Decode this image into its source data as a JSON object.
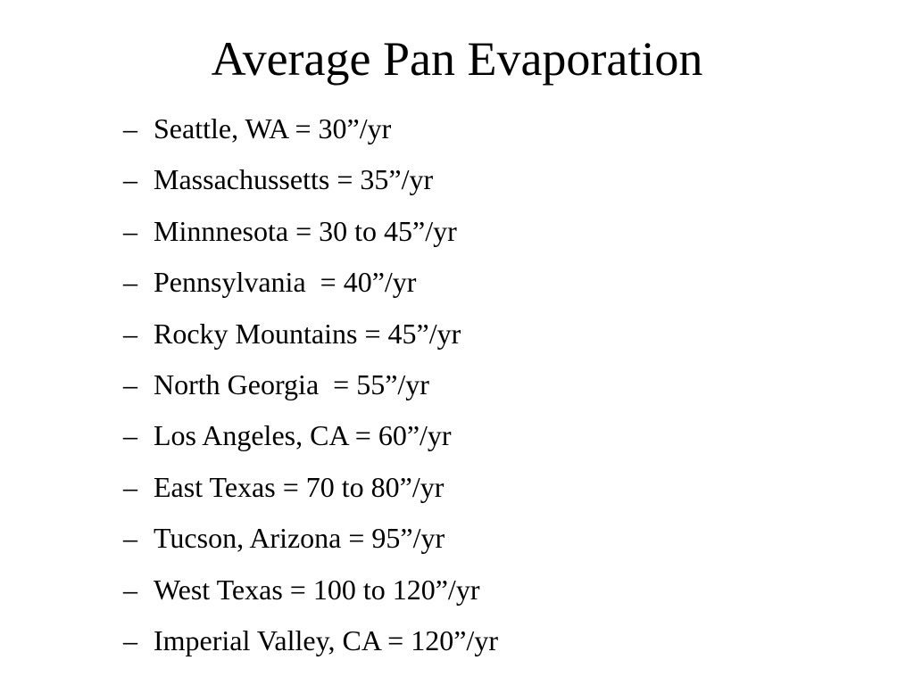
{
  "title": "Average Pan Evaporation",
  "bullet": "–",
  "items": [
    "Seattle, WA = 30”/yr",
    "Massachussetts = 35”/yr",
    "Minnnesota = 30 to 45”/yr",
    "Pennsylvania  = 40”/yr",
    "Rocky Mountains = 45”/yr",
    "North Georgia  = 55”/yr",
    "Los Angeles, CA = 60”/yr",
    "East Texas = 70 to 80”/yr",
    "Tucson, Arizona = 95”/yr",
    "West Texas = 100 to 120”/yr",
    "Imperial Valley, CA = 120”/yr"
  ]
}
